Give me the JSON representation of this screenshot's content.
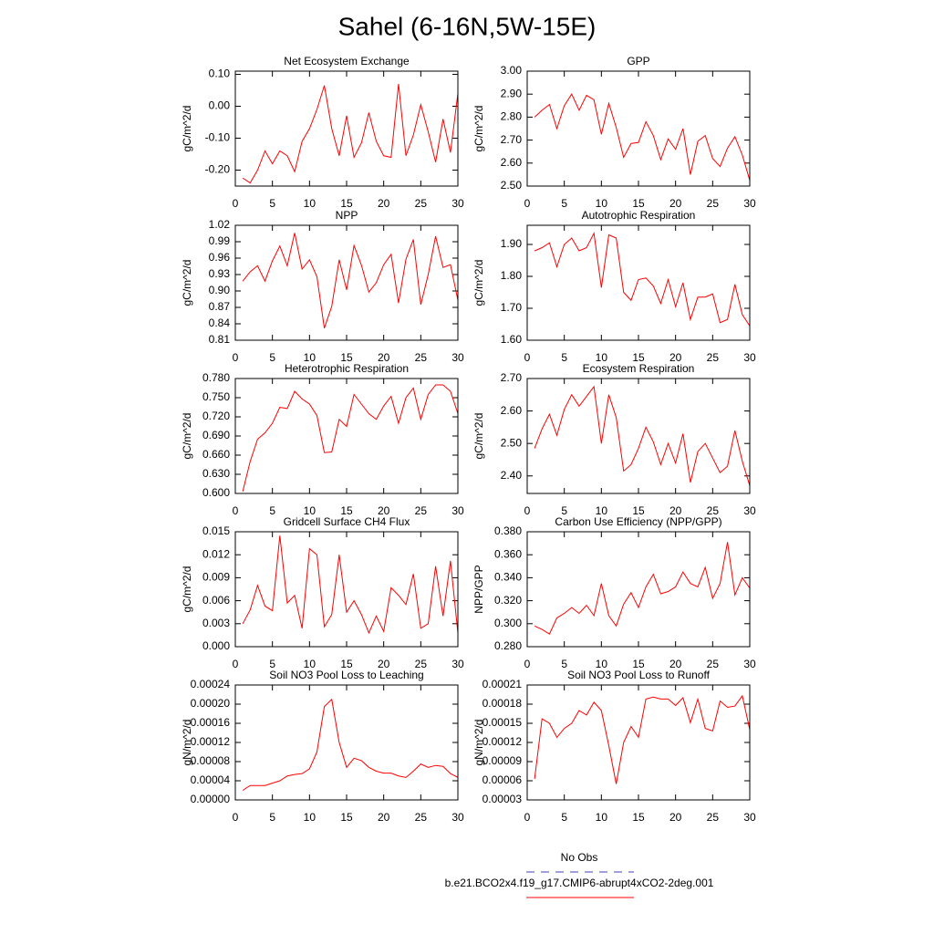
{
  "title": "Sahel (6-16N,5W-15E)",
  "legend": [
    {
      "label": "No Obs",
      "color": "#4040c0",
      "dashed": true
    },
    {
      "label": "b.e21.BCO2x4.f19_g17.CMIP6-abrupt4xCO2-2deg.001",
      "color": "#ff0000",
      "dashed": false
    }
  ],
  "chart_data": [
    {
      "type": "line",
      "title": "Net Ecosystem Exchange",
      "ylabel": "gC/m^2/d",
      "color": "#ff0000",
      "x": [
        1,
        2,
        3,
        4,
        5,
        6,
        7,
        8,
        9,
        10,
        11,
        12,
        13,
        14,
        15,
        16,
        17,
        18,
        19,
        20,
        21,
        22,
        23,
        24,
        25,
        26,
        27,
        28,
        29,
        30
      ],
      "values": [
        -0.225,
        -0.24,
        -0.2,
        -0.14,
        -0.18,
        -0.14,
        -0.155,
        -0.205,
        -0.11,
        -0.07,
        -0.01,
        0.065,
        -0.07,
        -0.155,
        -0.03,
        -0.16,
        -0.115,
        -0.02,
        -0.11,
        -0.155,
        -0.16,
        0.07,
        -0.155,
        -0.09,
        0.005,
        -0.08,
        -0.175,
        -0.04,
        -0.145,
        0.04
      ],
      "xlim": [
        0,
        30
      ],
      "xticks": [
        0,
        5,
        10,
        15,
        20,
        25,
        30
      ],
      "ylim": [
        -0.25,
        0.11
      ],
      "yticks": [
        {
          "value": -0.2,
          "label": "-0.20"
        },
        {
          "value": -0.1,
          "label": "-0.10"
        },
        {
          "value": 0,
          "label": "0.00"
        },
        {
          "value": 0.1,
          "label": "0.10"
        }
      ]
    },
    {
      "type": "line",
      "title": "GPP",
      "ylabel": "gC/m^2/d",
      "color": "#ff0000",
      "x": [
        1,
        2,
        3,
        4,
        5,
        6,
        7,
        8,
        9,
        10,
        11,
        12,
        13,
        14,
        15,
        16,
        17,
        18,
        19,
        20,
        21,
        22,
        23,
        24,
        25,
        26,
        27,
        28,
        29,
        30
      ],
      "values": [
        2.8,
        2.83,
        2.855,
        2.75,
        2.85,
        2.9,
        2.83,
        2.895,
        2.875,
        2.725,
        2.86,
        2.755,
        2.625,
        2.685,
        2.69,
        2.78,
        2.72,
        2.615,
        2.705,
        2.66,
        2.75,
        2.55,
        2.695,
        2.72,
        2.62,
        2.585,
        2.665,
        2.715,
        2.635,
        2.525
      ],
      "xlim": [
        0,
        30
      ],
      "xticks": [
        0,
        5,
        10,
        15,
        20,
        25,
        30
      ],
      "ylim": [
        2.5,
        3.0
      ],
      "yticks": [
        {
          "value": 2.5,
          "label": "2.50"
        },
        {
          "value": 2.6,
          "label": "2.60"
        },
        {
          "value": 2.7,
          "label": "2.70"
        },
        {
          "value": 2.8,
          "label": "2.80"
        },
        {
          "value": 2.9,
          "label": "2.90"
        },
        {
          "value": 3.0,
          "label": "3.00"
        }
      ]
    },
    {
      "type": "line",
      "title": "NPP",
      "ylabel": "gC/m^2/d",
      "color": "#ff0000",
      "x": [
        1,
        2,
        3,
        4,
        5,
        6,
        7,
        8,
        9,
        10,
        11,
        12,
        13,
        14,
        15,
        16,
        17,
        18,
        19,
        20,
        21,
        22,
        23,
        24,
        25,
        26,
        27,
        28,
        29,
        30
      ],
      "values": [
        0.918,
        0.935,
        0.946,
        0.918,
        0.955,
        0.982,
        0.946,
        1.006,
        0.94,
        0.957,
        0.926,
        0.832,
        0.872,
        0.957,
        0.902,
        0.983,
        0.947,
        0.898,
        0.915,
        0.948,
        0.967,
        0.878,
        0.958,
        0.994,
        0.875,
        0.93,
        1.0,
        0.943,
        0.948,
        0.883
      ],
      "xlim": [
        0,
        30
      ],
      "xticks": [
        0,
        5,
        10,
        15,
        20,
        25,
        30
      ],
      "ylim": [
        0.81,
        1.02
      ],
      "yticks": [
        0.81,
        0.84,
        0.87,
        {
          "value": 0.9,
          "label": "0.90"
        },
        0.93,
        0.96,
        0.99,
        1.02
      ]
    },
    {
      "type": "line",
      "title": "Autotrophic Respiration",
      "ylabel": "gC/m^2/d",
      "color": "#ff0000",
      "x": [
        1,
        2,
        3,
        4,
        5,
        6,
        7,
        8,
        9,
        10,
        11,
        12,
        13,
        14,
        15,
        16,
        17,
        18,
        19,
        20,
        21,
        22,
        23,
        24,
        25,
        26,
        27,
        28,
        29,
        30
      ],
      "values": [
        1.88,
        1.89,
        1.905,
        1.83,
        1.9,
        1.92,
        1.88,
        1.89,
        1.935,
        1.765,
        1.93,
        1.92,
        1.75,
        1.725,
        1.79,
        1.795,
        1.77,
        1.715,
        1.79,
        1.705,
        1.78,
        1.665,
        1.735,
        1.735,
        1.745,
        1.655,
        1.665,
        1.775,
        1.68,
        1.645
      ],
      "xlim": [
        0,
        30
      ],
      "xticks": [
        0,
        5,
        10,
        15,
        20,
        25,
        30
      ],
      "ylim": [
        1.6,
        1.96
      ],
      "yticks": [
        {
          "value": 1.6,
          "label": "1.60"
        },
        {
          "value": 1.7,
          "label": "1.70"
        },
        {
          "value": 1.8,
          "label": "1.80"
        },
        {
          "value": 1.9,
          "label": "1.90"
        }
      ]
    },
    {
      "type": "line",
      "title": "Heterotrophic Respiration",
      "ylabel": "gC/m^2/d",
      "color": "#ff0000",
      "x": [
        1,
        2,
        3,
        4,
        5,
        6,
        7,
        8,
        9,
        10,
        11,
        12,
        13,
        14,
        15,
        16,
        17,
        18,
        19,
        20,
        21,
        22,
        23,
        24,
        25,
        26,
        27,
        28,
        29,
        30
      ],
      "values": [
        0.603,
        0.65,
        0.685,
        0.695,
        0.71,
        0.735,
        0.733,
        0.76,
        0.748,
        0.74,
        0.722,
        0.664,
        0.665,
        0.716,
        0.705,
        0.755,
        0.74,
        0.725,
        0.716,
        0.737,
        0.752,
        0.71,
        0.75,
        0.765,
        0.716,
        0.755,
        0.77,
        0.77,
        0.76,
        0.725
      ],
      "xlim": [
        0,
        30
      ],
      "xticks": [
        0,
        5,
        10,
        15,
        20,
        25,
        30
      ],
      "ylim": [
        0.6,
        0.78
      ],
      "yticks": [
        {
          "value": 0.6,
          "label": "0.600"
        },
        {
          "value": 0.63,
          "label": "0.630"
        },
        {
          "value": 0.66,
          "label": "0.660"
        },
        {
          "value": 0.69,
          "label": "0.690"
        },
        {
          "value": 0.72,
          "label": "0.720"
        },
        {
          "value": 0.75,
          "label": "0.750"
        },
        {
          "value": 0.78,
          "label": "0.780"
        }
      ]
    },
    {
      "type": "line",
      "title": "Ecosystem Respiration",
      "ylabel": "gC/m^2/d",
      "color": "#ff0000",
      "x": [
        1,
        2,
        3,
        4,
        5,
        6,
        7,
        8,
        9,
        10,
        11,
        12,
        13,
        14,
        15,
        16,
        17,
        18,
        19,
        20,
        21,
        22,
        23,
        24,
        25,
        26,
        27,
        28,
        29,
        30
      ],
      "values": [
        2.485,
        2.545,
        2.59,
        2.525,
        2.605,
        2.65,
        2.615,
        2.645,
        2.675,
        2.5,
        2.65,
        2.58,
        2.415,
        2.435,
        2.485,
        2.55,
        2.505,
        2.435,
        2.5,
        2.44,
        2.53,
        2.38,
        2.475,
        2.5,
        2.455,
        2.41,
        2.43,
        2.54,
        2.445,
        2.37
      ],
      "xlim": [
        0,
        30
      ],
      "xticks": [
        0,
        5,
        10,
        15,
        20,
        25,
        30
      ],
      "ylim": [
        2.346,
        2.7
      ],
      "yticks": [
        {
          "value": 2.4,
          "label": "2.40"
        },
        {
          "value": 2.5,
          "label": "2.50"
        },
        {
          "value": 2.6,
          "label": "2.60"
        },
        {
          "value": 2.7,
          "label": "2.70"
        }
      ]
    },
    {
      "type": "line",
      "title": "Gridcell Surface CH4 Flux",
      "ylabel": "gC/m^2/d",
      "color": "#ff0000",
      "x": [
        1,
        2,
        3,
        4,
        5,
        6,
        7,
        8,
        9,
        10,
        11,
        12,
        13,
        14,
        15,
        16,
        17,
        18,
        19,
        20,
        21,
        22,
        23,
        24,
        25,
        26,
        27,
        28,
        29,
        30
      ],
      "values": [
        0.003,
        0.0048,
        0.008,
        0.0053,
        0.0047,
        0.0145,
        0.0057,
        0.0067,
        0.0024,
        0.0128,
        0.012,
        0.0026,
        0.0042,
        0.012,
        0.0045,
        0.006,
        0.0042,
        0.0018,
        0.004,
        0.002,
        0.0077,
        0.0067,
        0.0055,
        0.0095,
        0.0024,
        0.003,
        0.0105,
        0.004,
        0.0112,
        0.0018
      ],
      "xlim": [
        0,
        30
      ],
      "xticks": [
        0,
        5,
        10,
        15,
        20,
        25,
        30
      ],
      "ylim": [
        0,
        0.015
      ],
      "yticks": [
        {
          "value": 0,
          "label": "0.000"
        },
        0.003,
        0.006,
        0.009,
        0.012,
        0.015
      ]
    },
    {
      "type": "line",
      "title": "Carbon Use Efficiency (NPP/GPP)",
      "ylabel": "NPP/GPP",
      "color": "#ff0000",
      "x": [
        1,
        2,
        3,
        4,
        5,
        6,
        7,
        8,
        9,
        10,
        11,
        12,
        13,
        14,
        15,
        16,
        17,
        18,
        19,
        20,
        21,
        22,
        23,
        24,
        25,
        26,
        27,
        28,
        29,
        30
      ],
      "values": [
        0.298,
        0.295,
        0.291,
        0.305,
        0.309,
        0.314,
        0.309,
        0.316,
        0.307,
        0.335,
        0.307,
        0.298,
        0.317,
        0.327,
        0.314,
        0.332,
        0.343,
        0.326,
        0.328,
        0.332,
        0.345,
        0.335,
        0.332,
        0.349,
        0.322,
        0.335,
        0.371,
        0.325,
        0.34,
        0.331
      ],
      "xlim": [
        0,
        30
      ],
      "xticks": [
        0,
        5,
        10,
        15,
        20,
        25,
        30
      ],
      "ylim": [
        0.28,
        0.38
      ],
      "yticks": [
        {
          "value": 0.28,
          "label": "0.280"
        },
        {
          "value": 0.3,
          "label": "0.300"
        },
        {
          "value": 0.32,
          "label": "0.320"
        },
        {
          "value": 0.34,
          "label": "0.340"
        },
        {
          "value": 0.36,
          "label": "0.360"
        },
        {
          "value": 0.38,
          "label": "0.380"
        }
      ]
    },
    {
      "type": "line",
      "title": "Soil NO3 Pool Loss to Leaching",
      "ylabel": "gN/m^2/d",
      "color": "#ff0000",
      "x": [
        1,
        2,
        3,
        4,
        5,
        6,
        7,
        8,
        9,
        10,
        11,
        12,
        13,
        14,
        15,
        16,
        17,
        18,
        19,
        20,
        21,
        22,
        23,
        24,
        25,
        26,
        27,
        28,
        29,
        30
      ],
      "values": [
        2e-05,
        3e-05,
        3e-05,
        3e-05,
        3.5e-05,
        4e-05,
        5e-05,
        5.3e-05,
        5.5e-05,
        6.5e-05,
        0.0001,
        0.000195,
        0.00021,
        0.00012,
        6.8e-05,
        8.7e-05,
        8.2e-05,
        6.8e-05,
        6e-05,
        5.6e-05,
        5.6e-05,
        5e-05,
        4.7e-05,
        6e-05,
        7.5e-05,
        6.8e-05,
        7.2e-05,
        7e-05,
        5.5e-05,
        4.7e-05
      ],
      "xlim": [
        0,
        30
      ],
      "xticks": [
        0,
        5,
        10,
        15,
        20,
        25,
        30
      ],
      "ylim": [
        0,
        0.00024
      ],
      "yticks": [
        {
          "value": 0,
          "label": "0.00000"
        },
        4e-05,
        8e-05,
        0.00012,
        0.00016,
        {
          "value": 0.0002,
          "label": "0.00020"
        },
        0.00024
      ]
    },
    {
      "type": "line",
      "title": "Soil NO3 Pool Loss to Runoff",
      "ylabel": "gN/m^2/d",
      "color": "#ff0000",
      "x": [
        1,
        2,
        3,
        4,
        5,
        6,
        7,
        8,
        9,
        10,
        11,
        12,
        13,
        14,
        15,
        16,
        17,
        18,
        19,
        20,
        21,
        22,
        23,
        24,
        25,
        26,
        27,
        28,
        29,
        30
      ],
      "values": [
        6.3e-05,
        0.000157,
        0.00015,
        0.000128,
        0.000142,
        0.00015,
        0.00017,
        0.000163,
        0.000183,
        0.00017,
        0.000115,
        5.5e-05,
        0.00012,
        0.000145,
        0.000128,
        0.000188,
        0.000191,
        0.000188,
        0.000188,
        0.000178,
        0.00019,
        0.000151,
        0.000188,
        0.000142,
        0.000138,
        0.000185,
        0.000175,
        0.000177,
        0.000193,
        0.00014
      ],
      "xlim": [
        0,
        30
      ],
      "xticks": [
        0,
        5,
        10,
        15,
        20,
        25,
        30
      ],
      "ylim": [
        3e-05,
        0.00021
      ],
      "yticks": [
        3e-05,
        6e-05,
        9e-05,
        0.00012,
        0.00015,
        0.00018,
        0.00021
      ]
    }
  ]
}
